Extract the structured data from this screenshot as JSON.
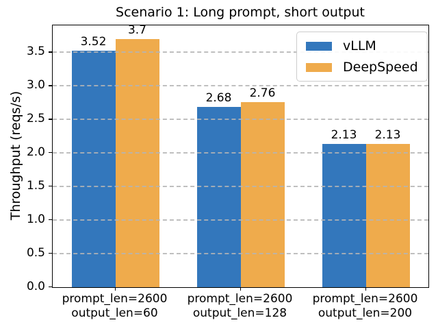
{
  "title": "Scenario 1: Long prompt, short output",
  "chart_data": {
    "type": "bar",
    "title": "Scenario 1: Long prompt, short output",
    "xlabel": "",
    "ylabel": "Throughput (reqs/s)",
    "categories": [
      "prompt_len=2600\noutput_len=60",
      "prompt_len=2600\noutput_len=128",
      "prompt_len=2600\noutput_len=200"
    ],
    "series": [
      {
        "name": "vLLM",
        "color": "#3377bc",
        "values": [
          3.52,
          2.68,
          2.13
        ]
      },
      {
        "name": "DeepSpeed",
        "color": "#efab4c",
        "values": [
          3.7,
          2.76,
          2.13
        ]
      }
    ],
    "value_labels": [
      [
        "3.52",
        "2.68",
        "2.13"
      ],
      [
        "3.7",
        "2.76",
        "2.13"
      ]
    ],
    "ylim": [
      0,
      3.9
    ],
    "yticks": [
      "0.0",
      "0.5",
      "1.0",
      "1.5",
      "2.0",
      "2.5",
      "3.0",
      "3.5"
    ],
    "grid": "horizontal-dashed",
    "grid_color": "#b5b5b5",
    "legend_position": "upper right"
  }
}
